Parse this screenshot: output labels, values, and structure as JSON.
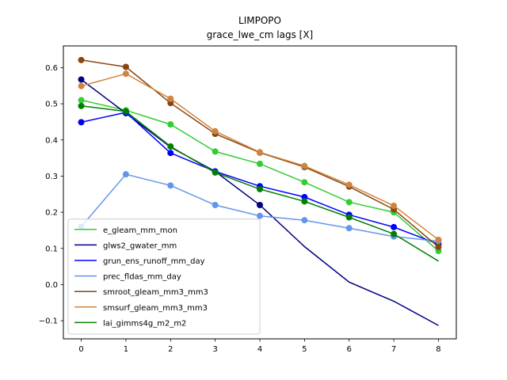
{
  "chart_data": {
    "type": "line",
    "title": "LIMPOPO",
    "subtitle": "grace_lwe_cm lags [X]",
    "xlabel": "",
    "ylabel": "",
    "x": [
      0,
      1,
      2,
      3,
      4,
      5,
      6,
      7,
      8
    ],
    "x_ticks": [
      "0",
      "1",
      "2",
      "3",
      "4",
      "5",
      "6",
      "7",
      "8"
    ],
    "y_ticks": [
      -0.1,
      0.0,
      0.1,
      0.2,
      0.3,
      0.4,
      0.5,
      0.6
    ],
    "y_tick_labels": [
      "−0.1",
      "0.0",
      "0.1",
      "0.2",
      "0.3",
      "0.4",
      "0.5",
      "0.6"
    ],
    "xlim": [
      -0.4,
      8.4
    ],
    "ylim": [
      -0.15,
      0.66
    ],
    "grid": false,
    "legend_position": "lower-left",
    "series": [
      {
        "name": "e_gleam_mm_mon",
        "color": "#32cd32",
        "values": [
          0.51,
          0.482,
          0.443,
          0.368,
          0.334,
          0.283,
          0.228,
          0.2,
          0.093
        ],
        "markers": [
          0,
          1,
          2,
          3,
          4,
          5,
          6,
          7,
          8
        ]
      },
      {
        "name": "glws2_gwater_mm",
        "color": "#000080",
        "values": [
          0.567,
          0.474,
          0.38,
          0.313,
          0.22,
          0.105,
          0.007,
          -0.046,
          -0.113
        ],
        "markers": [
          0,
          1,
          4
        ]
      },
      {
        "name": "grun_ens_runoff_mm_day",
        "color": "#0000ff",
        "values": [
          0.449,
          0.476,
          0.364,
          0.313,
          0.272,
          0.242,
          0.193,
          0.159,
          0.112
        ],
        "markers": [
          0,
          1,
          2,
          3,
          4,
          5,
          6,
          7,
          8
        ]
      },
      {
        "name": "prec_fldas_mm_day",
        "color": "#6495ed",
        "values": [
          0.16,
          0.305,
          0.274,
          0.22,
          0.19,
          0.178,
          0.156,
          0.133,
          0.12
        ],
        "markers": [
          0,
          1,
          2,
          3,
          4,
          5,
          6,
          7,
          8
        ]
      },
      {
        "name": "smroot_gleam_mm3_mm3",
        "color": "#8b4513",
        "values": [
          0.621,
          0.602,
          0.502,
          0.417,
          0.365,
          0.325,
          0.271,
          0.208,
          0.104
        ],
        "markers": [
          0,
          1,
          2,
          3,
          4,
          5,
          6,
          7,
          8
        ]
      },
      {
        "name": "smsurf_gleam_mm3_mm3",
        "color": "#cd853f",
        "values": [
          0.549,
          0.583,
          0.514,
          0.424,
          0.366,
          0.328,
          0.276,
          0.218,
          0.124
        ],
        "markers": [
          0,
          1,
          2,
          3,
          4,
          5,
          6,
          7,
          8
        ]
      },
      {
        "name": "lai_gimms4g_m2_m2",
        "color": "#008000",
        "values": [
          0.494,
          0.479,
          0.382,
          0.31,
          0.264,
          0.23,
          0.186,
          0.14,
          0.065
        ],
        "markers": [
          0,
          1,
          2,
          3,
          4,
          5,
          6,
          7
        ]
      }
    ]
  }
}
